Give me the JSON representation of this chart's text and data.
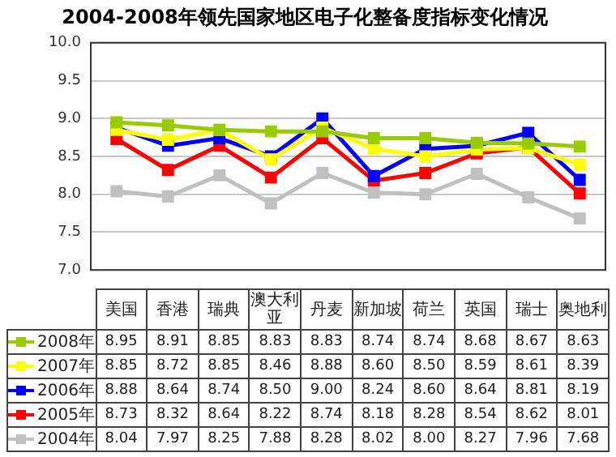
{
  "chart_data": {
    "type": "line",
    "title": "2004-2008年领先国家地区电子化整备度指标变化情况",
    "categories": [
      "美国",
      "香港",
      "瑞典",
      "澳大利亚",
      "丹麦",
      "新加坡",
      "荷兰",
      "英国",
      "瑞士",
      "奥地利"
    ],
    "series": [
      {
        "name": "2008年",
        "color": "#99cc00",
        "values": [
          8.95,
          8.91,
          8.85,
          8.83,
          8.83,
          8.74,
          8.74,
          8.68,
          8.67,
          8.63
        ],
        "value_labels": [
          "8.95",
          "8.91",
          "8.85",
          "8.83",
          "8.83",
          "8.74",
          "8.74",
          "8.68",
          "8.67",
          "8.63"
        ]
      },
      {
        "name": "2007年",
        "color": "#ffff00",
        "values": [
          8.85,
          8.72,
          8.85,
          8.46,
          8.88,
          8.6,
          8.5,
          8.59,
          8.61,
          8.39
        ],
        "value_labels": [
          "8.85",
          "8.72",
          "8.85",
          "8.46",
          "8.88",
          "8.60",
          "8.50",
          "8.59",
          "8.61",
          "8.39"
        ]
      },
      {
        "name": "2006年",
        "color": "#0000ff",
        "values": [
          8.88,
          8.64,
          8.74,
          8.5,
          9.0,
          8.24,
          8.6,
          8.64,
          8.81,
          8.19
        ],
        "value_labels": [
          "8.88",
          "8.64",
          "8.74",
          "8.50",
          "9.00",
          "8.24",
          "8.60",
          "8.64",
          "8.81",
          "8.19"
        ]
      },
      {
        "name": "2005年",
        "color": "#ff0000",
        "values": [
          8.73,
          8.32,
          8.64,
          8.22,
          8.74,
          8.18,
          8.28,
          8.54,
          8.62,
          8.01
        ],
        "value_labels": [
          "8.73",
          "8.32",
          "8.64",
          "8.22",
          "8.74",
          "8.18",
          "8.28",
          "8.54",
          "8.62",
          "8.01"
        ]
      },
      {
        "name": "2004年",
        "color": "#c0c0c0",
        "values": [
          8.04,
          7.97,
          8.25,
          7.88,
          8.28,
          8.02,
          8.0,
          8.27,
          7.96,
          7.68
        ],
        "value_labels": [
          "8.04",
          "7.97",
          "8.25",
          "7.88",
          "8.28",
          "8.02",
          "8.00",
          "8.27",
          "7.96",
          "7.68"
        ]
      }
    ],
    "ylim": [
      7.0,
      10.0
    ],
    "yticks": [
      {
        "value": 7,
        "label": "7.0"
      },
      {
        "value": 7.5,
        "label": "7.5"
      },
      {
        "value": 8,
        "label": "8.0"
      },
      {
        "value": 8.5,
        "label": "8.5"
      },
      {
        "value": 9,
        "label": "9.0"
      },
      {
        "value": 9.5,
        "label": "9.5"
      },
      {
        "value": 10,
        "label": "10.0"
      }
    ],
    "grid": "y",
    "legend": "left",
    "marker": "square",
    "line_style": "solid"
  }
}
